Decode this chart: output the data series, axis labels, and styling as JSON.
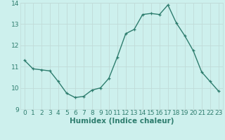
{
  "x": [
    0,
    1,
    2,
    3,
    4,
    5,
    6,
    7,
    8,
    9,
    10,
    11,
    12,
    13,
    14,
    15,
    16,
    17,
    18,
    19,
    20,
    21,
    22,
    23
  ],
  "y": [
    11.3,
    10.9,
    10.85,
    10.8,
    10.3,
    9.75,
    9.55,
    9.6,
    9.9,
    10.0,
    10.45,
    11.45,
    12.55,
    12.75,
    13.45,
    13.5,
    13.45,
    13.9,
    13.05,
    12.45,
    11.75,
    10.75,
    10.3,
    9.85
  ],
  "line_color": "#2e7d6e",
  "marker": "+",
  "marker_size": 3.5,
  "bg_color": "#cdf0ed",
  "grid_color": "#c0dbd8",
  "xlabel": "Humidex (Indice chaleur)",
  "xlim": [
    -0.5,
    23.5
  ],
  "ylim": [
    9,
    14
  ],
  "yticks": [
    9,
    10,
    11,
    12,
    13,
    14
  ],
  "xticks": [
    0,
    1,
    2,
    3,
    4,
    5,
    6,
    7,
    8,
    9,
    10,
    11,
    12,
    13,
    14,
    15,
    16,
    17,
    18,
    19,
    20,
    21,
    22,
    23
  ],
  "label_color": "#2e7d6e",
  "xlabel_fontsize": 7.5,
  "tick_fontsize": 6.5,
  "linewidth": 1.0
}
